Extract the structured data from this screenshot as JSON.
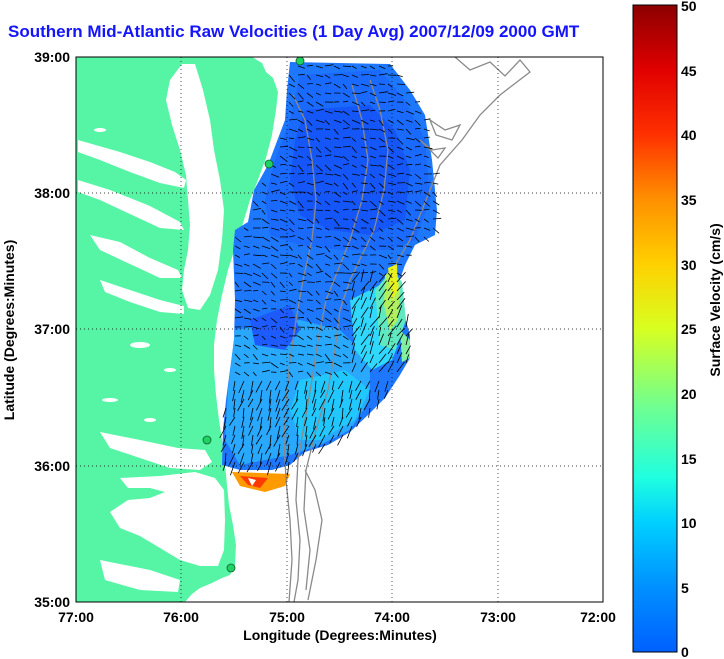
{
  "title": "Southern Mid-Atlantic Raw Velocities (1 Day Avg) 2007/12/09 2000 GMT",
  "map": {
    "xlabel": "Longitude (Degrees:Minutes)",
    "ylabel": "Latitude (Degrees:Minutes)",
    "x_ticks": [
      "77:00",
      "76:00",
      "75:00",
      "74:00",
      "73:00",
      "72:00"
    ],
    "y_ticks": [
      "39:00",
      "38:00",
      "37:00",
      "36:00",
      "35:00"
    ],
    "lon_range": [
      -77,
      -72
    ],
    "lat_range": [
      35,
      39
    ],
    "grid": "dotted",
    "land_color": "#55f5a5",
    "bathymetry_color": "#8a8a8a",
    "station_color": "#20d060"
  },
  "colorbar": {
    "label": "Surface Velocity (cm/s)",
    "ticks": [
      "50",
      "45",
      "40",
      "35",
      "30",
      "25",
      "20",
      "15",
      "10",
      "5",
      "0"
    ],
    "range": [
      0,
      50
    ],
    "colormap": "jet"
  }
}
